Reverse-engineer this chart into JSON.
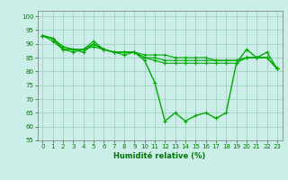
{
  "line1_x": [
    0,
    1,
    2,
    3,
    4,
    5,
    6,
    7,
    8,
    9,
    10,
    11,
    12,
    13,
    14,
    15,
    16,
    17,
    18,
    19,
    20,
    21,
    22,
    23
  ],
  "line1_y": [
    93,
    92,
    89,
    88,
    87,
    90,
    88,
    87,
    87,
    87,
    84,
    76,
    62,
    65,
    62,
    64,
    65,
    63,
    65,
    83,
    88,
    85,
    87,
    81
  ],
  "line2_x": [
    0,
    1,
    2,
    3,
    4,
    5,
    6,
    7,
    8,
    9,
    10,
    11,
    12,
    13,
    14,
    15,
    16,
    17,
    18,
    19,
    20,
    21,
    22,
    23
  ],
  "line2_y": [
    93,
    92,
    88,
    88,
    88,
    89,
    88,
    87,
    87,
    87,
    86,
    86,
    86,
    85,
    85,
    85,
    85,
    84,
    84,
    84,
    85,
    85,
    85,
    81
  ],
  "line3_x": [
    0,
    1,
    2,
    3,
    4,
    5,
    6,
    7,
    8,
    9,
    10,
    11,
    12,
    13,
    14,
    15,
    16,
    17,
    18,
    19,
    20,
    21,
    22,
    23
  ],
  "line3_y": [
    93,
    91,
    88,
    87,
    88,
    91,
    88,
    87,
    86,
    87,
    85,
    84,
    83,
    83,
    83,
    83,
    83,
    83,
    83,
    83,
    85,
    85,
    85,
    81
  ],
  "line4_x": [
    0,
    1,
    2,
    3,
    4,
    5,
    6,
    7,
    8,
    9,
    10,
    11,
    12,
    13,
    14,
    15,
    16,
    17,
    18,
    19,
    20,
    21,
    22,
    23
  ],
  "line4_y": [
    93,
    92,
    88,
    88,
    88,
    90,
    88,
    87,
    87,
    87,
    85,
    85,
    84,
    84,
    84,
    84,
    84,
    84,
    84,
    84,
    85,
    85,
    85,
    81
  ],
  "xlabel": "Humidité relative (%)",
  "xlim": [
    -0.5,
    23.5
  ],
  "ylim": [
    55,
    102
  ],
  "yticks": [
    55,
    60,
    65,
    70,
    75,
    80,
    85,
    90,
    95,
    100
  ],
  "xticks": [
    0,
    1,
    2,
    3,
    4,
    5,
    6,
    7,
    8,
    9,
    10,
    11,
    12,
    13,
    14,
    15,
    16,
    17,
    18,
    19,
    20,
    21,
    22,
    23
  ],
  "bg_color": "#cceee8",
  "grid_color": "#99ccbb",
  "tick_color": "#007700",
  "label_color": "#007700",
  "line_color": "#00aa00"
}
